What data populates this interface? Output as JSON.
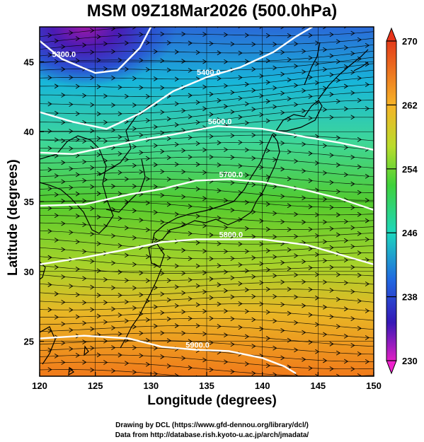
{
  "title": "MSM 09Z18Mar2026 (500.0hPa)",
  "xlabel": "Longitude (degrees)",
  "ylabel": "Latitude  (degrees)",
  "x_ticks": [
    "120",
    "125",
    "130",
    "135",
    "140",
    "145",
    "150"
  ],
  "y_ticks": [
    "25",
    "30",
    "35",
    "40",
    "45"
  ],
  "colorbar_ticks": [
    "270",
    "262",
    "254",
    "246",
    "238",
    "230"
  ],
  "contour_labels": [
    "5300.0",
    "5400.0",
    "5600.0",
    "5700.0",
    "5800.0",
    "5900.0"
  ],
  "credits": {
    "line1": "Drawing by DCL (https://www.gfd-dennou.org/library/dcl/)",
    "line2": "Data from http://database.rish.kyoto-u.ac.jp/arch/jmadata/"
  },
  "chart_data": {
    "type": "heatmap",
    "title": "MSM 09Z18Mar2026 (500.0hPa)",
    "xlabel": "Longitude (degrees)",
    "ylabel": "Latitude  (degrees)",
    "xlim": [
      120,
      150
    ],
    "ylim": [
      22.5,
      47.5
    ],
    "colorbar_range": [
      230,
      270
    ],
    "contour_lines": [
      {
        "label": "5300.0",
        "points": [
          [
            120,
            46.5
          ],
          [
            122,
            45.2
          ],
          [
            125,
            44.2
          ],
          [
            127,
            44.4
          ],
          [
            129,
            46.0
          ],
          [
            130,
            47.5
          ]
        ]
      },
      {
        "label": "5400.0",
        "points": [
          [
            120,
            41.4
          ],
          [
            123,
            40.7
          ],
          [
            126,
            40.2
          ],
          [
            129,
            41.3
          ],
          [
            132,
            42.9
          ],
          [
            135,
            43.9
          ],
          [
            138,
            44.6
          ],
          [
            141,
            45.7
          ],
          [
            143,
            46.8
          ],
          [
            144.5,
            47.5
          ]
        ]
      },
      {
        "label": "5600.0",
        "points": [
          [
            120,
            38.5
          ],
          [
            123,
            38.4
          ],
          [
            126,
            38.9
          ],
          [
            129,
            39.4
          ],
          [
            132,
            39.8
          ],
          [
            136,
            40.4
          ],
          [
            140,
            40.2
          ],
          [
            144,
            39.6
          ],
          [
            147,
            39.2
          ],
          [
            150,
            38.7
          ]
        ]
      },
      {
        "label": "5700.0",
        "points": [
          [
            120,
            34.7
          ],
          [
            124,
            34.8
          ],
          [
            128,
            35.5
          ],
          [
            131,
            35.9
          ],
          [
            134,
            36.5
          ],
          [
            137,
            36.6
          ],
          [
            140,
            36.4
          ],
          [
            144,
            35.8
          ],
          [
            147,
            35.2
          ],
          [
            150,
            34.4
          ]
        ]
      },
      {
        "label": "5800.0",
        "points": [
          [
            120,
            30.5
          ],
          [
            124,
            31.0
          ],
          [
            128,
            31.6
          ],
          [
            131,
            32.1
          ],
          [
            134,
            32.3
          ],
          [
            137,
            32.3
          ],
          [
            140,
            32.3
          ],
          [
            144,
            31.9
          ],
          [
            147,
            31.2
          ],
          [
            150,
            30.5
          ]
        ]
      },
      {
        "label": "5900.0",
        "points": [
          [
            120,
            25.2
          ],
          [
            124,
            25.4
          ],
          [
            128,
            25.2
          ],
          [
            131,
            24.6
          ],
          [
            134,
            24.4
          ],
          [
            137,
            24.3
          ],
          [
            140,
            23.8
          ],
          [
            142,
            23.2
          ],
          [
            143,
            22.7
          ]
        ]
      }
    ],
    "streamline_direction": "west-to-east"
  }
}
